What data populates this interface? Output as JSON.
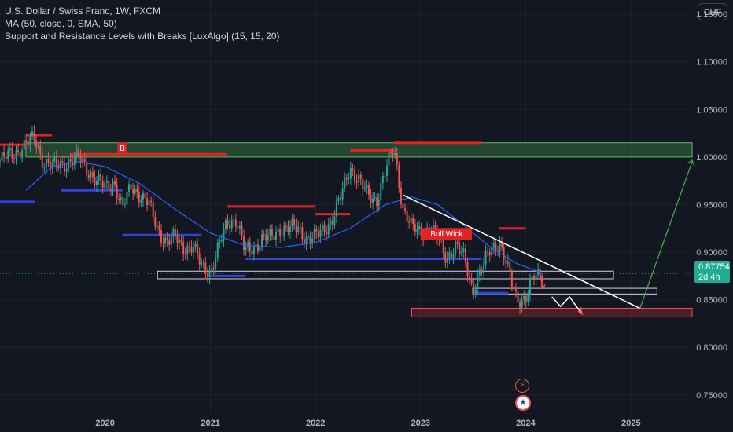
{
  "legend": {
    "title": "U.S. Dollar / Swiss Franc, 1W, FXCM",
    "indicator1": "MA (50, close, 0, SMA, 50)",
    "indicator2": "Support and Resistance Levels with Breaks [LuxAlgo] (15, 15, 20)"
  },
  "currency_button": "CHF",
  "price_tag": {
    "price": "0.87754",
    "countdown": "2d 4h"
  },
  "colors": {
    "background": "#131722",
    "up": "#26a69a",
    "down": "#ef5350",
    "ma": "#2962ff",
    "resistance": "#e02424",
    "support": "#2f44d8",
    "accent": "#22ab94"
  },
  "chart_data": {
    "type": "candlestick",
    "x_range": [
      "2019-01-01",
      "2025-08-01"
    ],
    "ylim": [
      0.73,
      1.165
    ],
    "y_ticks": [
      {
        "value": 0.75,
        "label": "0.75000"
      },
      {
        "value": 0.8,
        "label": "0.80000"
      },
      {
        "value": 0.85,
        "label": "0.85000"
      },
      {
        "value": 0.9,
        "label": "0.90000"
      },
      {
        "value": 0.95,
        "label": "0.95000"
      },
      {
        "value": 1.0,
        "label": "1.00000"
      },
      {
        "value": 1.05,
        "label": "1.05000"
      },
      {
        "value": 1.1,
        "label": "1.10000"
      },
      {
        "value": 1.15,
        "label": "1.15000"
      }
    ],
    "x_ticks": [
      {
        "date": "2020-01-01",
        "label": "2020"
      },
      {
        "date": "2021-01-01",
        "label": "2021"
      },
      {
        "date": "2022-01-01",
        "label": "2022"
      },
      {
        "date": "2023-01-01",
        "label": "2023"
      },
      {
        "date": "2024-01-01",
        "label": "2024"
      },
      {
        "date": "2025-01-01",
        "label": "2025"
      }
    ],
    "price_path": [
      [
        "2019-01-01",
        0.996
      ],
      [
        "2019-03-01",
        1.006
      ],
      [
        "2019-05-01",
        1.02
      ],
      [
        "2019-06-01",
        0.995
      ],
      [
        "2019-07-01",
        0.99
      ],
      [
        "2019-09-01",
        0.995
      ],
      [
        "2019-10-01",
        1.0
      ],
      [
        "2019-12-01",
        0.975
      ],
      [
        "2020-01-01",
        0.968
      ],
      [
        "2020-02-01",
        0.975
      ],
      [
        "2020-03-01",
        0.945
      ],
      [
        "2020-04-01",
        0.97
      ],
      [
        "2020-06-01",
        0.95
      ],
      [
        "2020-07-01",
        0.925
      ],
      [
        "2020-08-01",
        0.91
      ],
      [
        "2020-09-01",
        0.915
      ],
      [
        "2020-10-01",
        0.905
      ],
      [
        "2020-11-01",
        0.905
      ],
      [
        "2020-12-01",
        0.885
      ],
      [
        "2021-01-01",
        0.88
      ],
      [
        "2021-03-01",
        0.932
      ],
      [
        "2021-04-01",
        0.935
      ],
      [
        "2021-05-01",
        0.9
      ],
      [
        "2021-06-01",
        0.905
      ],
      [
        "2021-07-01",
        0.915
      ],
      [
        "2021-08-01",
        0.915
      ],
      [
        "2021-09-01",
        0.925
      ],
      [
        "2021-10-01",
        0.925
      ],
      [
        "2021-11-01",
        0.925
      ],
      [
        "2021-12-01",
        0.915
      ],
      [
        "2022-01-01",
        0.915
      ],
      [
        "2022-02-01",
        0.925
      ],
      [
        "2022-03-01",
        0.935
      ],
      [
        "2022-04-01",
        0.96
      ],
      [
        "2022-05-01",
        0.99
      ],
      [
        "2022-06-01",
        0.975
      ],
      [
        "2022-07-01",
        0.96
      ],
      [
        "2022-08-01",
        0.955
      ],
      [
        "2022-09-01",
        0.985
      ],
      [
        "2022-10-01",
        1.01
      ],
      [
        "2022-11-01",
        0.945
      ],
      [
        "2022-12-01",
        0.925
      ],
      [
        "2023-01-01",
        0.922
      ],
      [
        "2023-02-01",
        0.925
      ],
      [
        "2023-03-01",
        0.915
      ],
      [
        "2023-04-01",
        0.895
      ],
      [
        "2023-05-01",
        0.905
      ],
      [
        "2023-06-01",
        0.895
      ],
      [
        "2023-07-01",
        0.862
      ],
      [
        "2023-08-01",
        0.88
      ],
      [
        "2023-09-01",
        0.905
      ],
      [
        "2023-10-01",
        0.91
      ],
      [
        "2023-11-01",
        0.88
      ],
      [
        "2023-12-01",
        0.852
      ],
      [
        "2024-01-01",
        0.85
      ],
      [
        "2024-02-01",
        0.875
      ],
      [
        "2024-02-28",
        0.878
      ]
    ],
    "moving_average": [
      [
        "2019-04-01",
        0.965
      ],
      [
        "2019-07-01",
        0.99
      ],
      [
        "2019-10-01",
        0.995
      ],
      [
        "2020-01-01",
        0.99
      ],
      [
        "2020-05-01",
        0.972
      ],
      [
        "2020-09-01",
        0.945
      ],
      [
        "2021-01-01",
        0.92
      ],
      [
        "2021-05-01",
        0.907
      ],
      [
        "2021-09-01",
        0.905
      ],
      [
        "2022-01-01",
        0.91
      ],
      [
        "2022-05-01",
        0.925
      ],
      [
        "2022-09-01",
        0.95
      ],
      [
        "2022-12-01",
        0.958
      ],
      [
        "2023-03-01",
        0.95
      ],
      [
        "2023-06-01",
        0.928
      ],
      [
        "2023-09-01",
        0.905
      ],
      [
        "2023-12-01",
        0.888
      ],
      [
        "2024-02-28",
        0.878
      ]
    ],
    "resistance_levels": [
      {
        "x0": "2018-12-01",
        "x1": "2019-04-01",
        "y": 1.013
      },
      {
        "x0": "2019-04-01",
        "x1": "2019-07-01",
        "y": 1.023
      },
      {
        "x0": "2019-09-01",
        "x1": "2021-03-01",
        "y": 1.003
      },
      {
        "x0": "2021-03-01",
        "x1": "2022-01-01",
        "y": 0.948
      },
      {
        "x0": "2022-01-01",
        "x1": "2022-05-01",
        "y": 0.94
      },
      {
        "x0": "2022-05-01",
        "x1": "2022-10-01",
        "y": 1.007
      },
      {
        "x0": "2022-10-01",
        "x1": "2023-08-01",
        "y": 1.015
      },
      {
        "x0": "2023-10-01",
        "x1": "2024-01-01",
        "y": 0.925
      }
    ],
    "support_levels": [
      {
        "x0": "2018-12-01",
        "x1": "2019-05-01",
        "y": 0.953
      },
      {
        "x0": "2019-08-01",
        "x1": "2020-03-01",
        "y": 0.965
      },
      {
        "x0": "2020-03-01",
        "x1": "2020-12-01",
        "y": 0.918
      },
      {
        "x0": "2021-01-01",
        "x1": "2021-05-01",
        "y": 0.875
      },
      {
        "x0": "2021-05-01",
        "x1": "2023-08-01",
        "y": 0.893
      },
      {
        "x0": "2023-07-01",
        "x1": "2023-11-01",
        "y": 0.857
      }
    ],
    "zones": [
      {
        "x0": "2019-04-01",
        "x1": "2025-08-01",
        "top": 1.015,
        "bottom": 1.0,
        "kind": "resistance-zone"
      },
      {
        "x0": "2020-07-01",
        "x1": "2024-11-01",
        "top": 0.88,
        "bottom": 0.872,
        "kind": "support-zone"
      },
      {
        "x0": "2023-07-01",
        "x1": "2025-04-01",
        "top": 0.862,
        "bottom": 0.856,
        "kind": "support-zone"
      },
      {
        "x0": "2022-12-01",
        "x1": "2025-08-01",
        "top": 0.841,
        "bottom": 0.832,
        "kind": "target-zone"
      }
    ],
    "trendline": {
      "x0": "2022-11-01",
      "y0": 0.96,
      "x1": "2025-02-01",
      "y1": 0.841
    },
    "projection": {
      "x0": "2025-02-01",
      "y0": 0.841,
      "x1": "2025-08-01",
      "y1": 0.995
    },
    "labels": [
      {
        "text": "B",
        "x": "2020-03-01",
        "y": 1.008
      },
      {
        "text": "Bull Wick",
        "x": "2023-04-01",
        "y": 0.918
      }
    ]
  }
}
